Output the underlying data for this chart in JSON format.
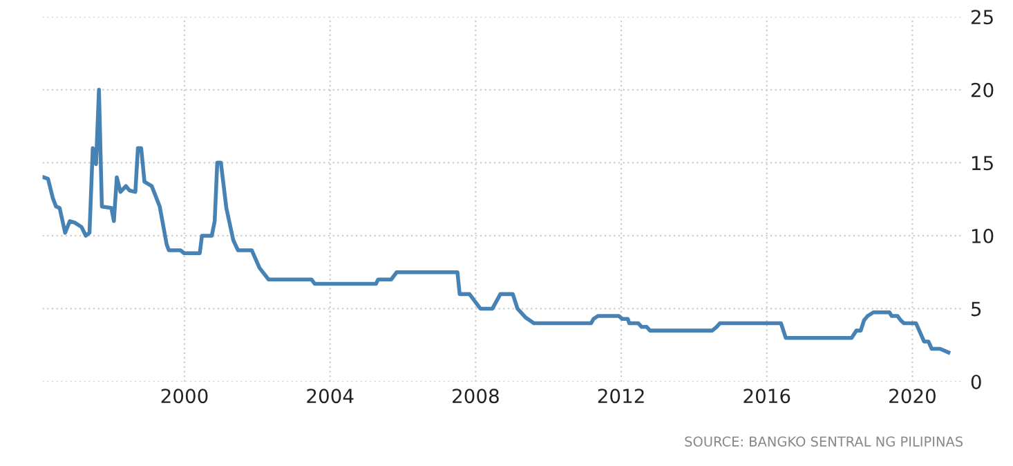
{
  "chart_data": {
    "type": "line",
    "x": [
      1996.13,
      1996.25,
      1996.38,
      1996.47,
      1996.57,
      1996.72,
      1996.85,
      1996.98,
      1997.17,
      1997.29,
      1997.39,
      1997.48,
      1997.57,
      1997.65,
      1997.73,
      1997.99,
      1998.06,
      1998.14,
      1998.24,
      1998.39,
      1998.49,
      1998.65,
      1998.72,
      1998.81,
      1998.9,
      1999.1,
      1999.32,
      1999.51,
      1999.57,
      1999.89,
      1999.99,
      2000.42,
      2000.48,
      2000.75,
      2000.83,
      2000.9,
      2001.0,
      2001.15,
      2001.34,
      2001.47,
      2001.85,
      2002.06,
      2002.31,
      2003.49,
      2003.58,
      2005.26,
      2005.32,
      2005.68,
      2005.83,
      2007.5,
      2007.56,
      2007.83,
      2008.13,
      2008.46,
      2008.68,
      2009.02,
      2009.15,
      2009.37,
      2009.6,
      2011.17,
      2011.24,
      2011.36,
      2011.93,
      2012.03,
      2012.18,
      2012.22,
      2012.47,
      2012.56,
      2012.7,
      2012.79,
      2014.5,
      2014.62,
      2014.71,
      2016.39,
      2016.52,
      2018.33,
      2018.46,
      2018.58,
      2018.67,
      2018.77,
      2018.93,
      2019.37,
      2019.43,
      2019.59,
      2019.68,
      2019.77,
      2020.1,
      2020.32,
      2020.44,
      2020.53,
      2020.76,
      2020.99
    ],
    "series": [
      {
        "color": "#4682b4",
        "values": [
          14.0,
          13.9,
          12.6,
          12.0,
          11.9,
          10.2,
          11.0,
          10.9,
          10.6,
          10.0,
          10.2,
          16.0,
          14.9,
          20.0,
          12.0,
          11.9,
          11.0,
          14.0,
          13.0,
          13.4,
          13.1,
          13.0,
          16.0,
          16.0,
          13.7,
          13.4,
          12.0,
          9.4,
          9.0,
          9.0,
          8.8,
          8.8,
          10.0,
          10.0,
          11.0,
          15.0,
          15.0,
          11.9,
          9.7,
          9.0,
          9.0,
          7.8,
          7.0,
          7.0,
          6.7,
          6.7,
          7.0,
          7.0,
          7.5,
          7.5,
          6.0,
          6.0,
          5.0,
          5.0,
          6.0,
          6.0,
          5.0,
          4.4,
          4.0,
          4.0,
          4.3,
          4.5,
          4.5,
          4.3,
          4.3,
          4.0,
          4.0,
          3.75,
          3.75,
          3.5,
          3.5,
          3.75,
          4.0,
          4.0,
          3.0,
          3.0,
          3.5,
          3.5,
          4.2,
          4.5,
          4.75,
          4.75,
          4.5,
          4.5,
          4.2,
          4.0,
          4.0,
          2.75,
          2.75,
          2.25,
          2.25,
          2.0
        ]
      }
    ],
    "xlim": [
      1996.1,
      2021.4
    ],
    "ylim": [
      0,
      25
    ],
    "xticks": [
      2000,
      2004,
      2008,
      2012,
      2016,
      2020
    ],
    "yticks": [
      0,
      5,
      10,
      15,
      20,
      25
    ],
    "grid": true,
    "marker": "none",
    "line_style": "solid",
    "legend": false,
    "annotations": [
      "SOURCE: BANGKO SENTRAL NG PILIPINAS"
    ]
  }
}
